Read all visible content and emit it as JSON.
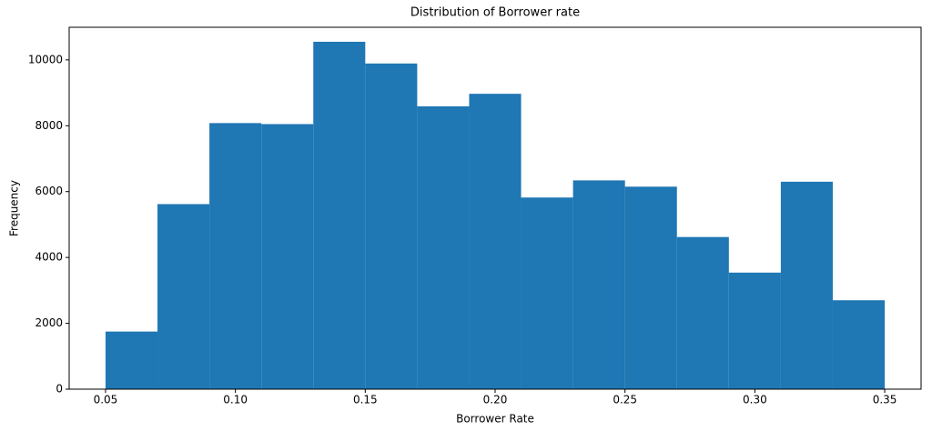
{
  "chart_data": {
    "type": "histogram",
    "title": "Distribution of Borrower rate",
    "x_label": "Borrower Rate",
    "y_label": "Frequency",
    "bins": [
      0.05,
      0.07,
      0.09,
      0.11,
      0.13,
      0.15,
      0.17,
      0.19,
      0.21,
      0.23,
      0.25,
      0.27,
      0.29,
      0.31,
      0.33,
      0.35
    ],
    "counts": [
      1750,
      5620,
      8080,
      8050,
      10550,
      9890,
      8590,
      8970,
      5820,
      6340,
      6150,
      4620,
      3540,
      6300,
      2700
    ],
    "color": "#1f77b4",
    "xlim": [
      0.036,
      0.364
    ],
    "xticks": [
      0.05,
      {
        "value": 0.1,
        "label": "0.10"
      },
      0.15,
      {
        "value": 0.2,
        "label": "0.20"
      },
      0.25,
      {
        "value": 0.3,
        "label": "0.30"
      },
      0.35
    ],
    "ylim": [
      0,
      10990
    ],
    "yticks": [
      0,
      2000,
      4000,
      6000,
      8000,
      10000
    ]
  }
}
